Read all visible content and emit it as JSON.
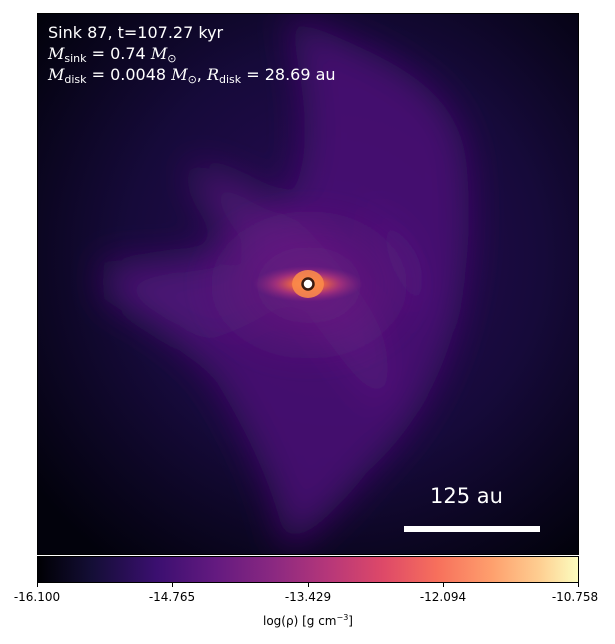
{
  "overlay": {
    "line1": "Sink 87, t=107.27 kyr",
    "m_sink_symbol": "M",
    "m_sink_sub": "sink",
    "m_sink_value": " = 0.74 ",
    "m_sink_unit": "M",
    "m_sink_unit_sub": "⊙",
    "m_disk_symbol": "M",
    "m_disk_sub": "disk",
    "m_disk_value": " = 0.0048 ",
    "m_disk_unit": "M",
    "m_disk_unit_sub": "⊙",
    "r_disk_sep": ", ",
    "r_disk_symbol": "R",
    "r_disk_sub": "disk",
    "r_disk_value": " = 28.69 au"
  },
  "scale_bar": {
    "label": "125 au",
    "length_au": 125
  },
  "colorbar": {
    "colormap": "plasma-magma",
    "min": -16.1,
    "max": -10.758,
    "ticks": [
      "-16.100",
      "-14.765",
      "-13.429",
      "-12.094",
      "-10.758"
    ],
    "label_main": "log(ρ) [g cm",
    "label_sup": "−3",
    "label_end": "]"
  },
  "colors": {
    "background_dark": "#000004",
    "envelope": "#3b0f70",
    "core": "#f7705c",
    "sink_marker": "#ffffff"
  }
}
